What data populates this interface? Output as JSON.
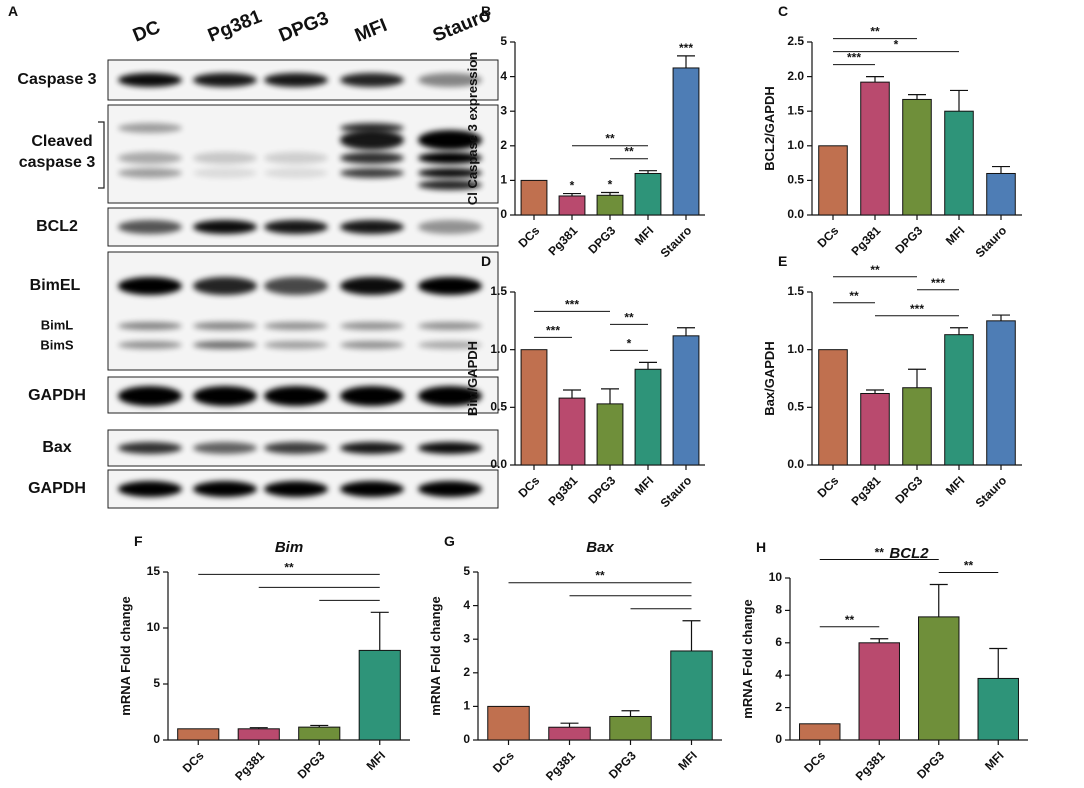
{
  "blot": {
    "panel": "A",
    "lanes": [
      "DC",
      "Pg381",
      "DPG3",
      "MFI",
      "Stauro"
    ],
    "rows": [
      "Caspase 3",
      "Cleaved",
      "caspase 3",
      "BCL2",
      "BimEL",
      "BimL",
      "BimS",
      "GAPDH",
      "Bax",
      "GAPDH"
    ]
  },
  "chart_data": [
    {
      "type": "bar",
      "panel": "B",
      "y_label": "Cl Caspase 3 expression",
      "categories": [
        "DCs",
        "Pg381",
        "DPG3",
        "MFI",
        "Stauro"
      ],
      "colors": [
        "#c0704f",
        "#b94a6e",
        "#6f8f3a",
        "#2e9479",
        "#4e7db5"
      ],
      "values": [
        1,
        0.55,
        0.57,
        1.2,
        4.25
      ],
      "errors": [
        0,
        0.07,
        0.08,
        0.08,
        0.35
      ],
      "ylim": [
        0,
        5
      ],
      "yticks": [
        0,
        1,
        2,
        3,
        4,
        5
      ],
      "stars": [
        {
          "index": 1,
          "label": "*"
        },
        {
          "index": 2,
          "label": "*"
        },
        {
          "index": 4,
          "label": "***"
        }
      ],
      "brackets": [
        {
          "from": 2,
          "to": 3,
          "label": "**"
        },
        {
          "from": 1,
          "to": 3,
          "label": "**"
        }
      ]
    },
    {
      "type": "bar",
      "panel": "C",
      "y_label": "BCL2/GAPDH",
      "categories": [
        "DCs",
        "Pg381",
        "DPG3",
        "MFI",
        "Stauro"
      ],
      "colors": [
        "#c0704f",
        "#b94a6e",
        "#6f8f3a",
        "#2e9479",
        "#4e7db5"
      ],
      "values": [
        1,
        1.92,
        1.67,
        1.5,
        0.6
      ],
      "errors": [
        0,
        0.08,
        0.07,
        0.3,
        0.1
      ],
      "ylim": [
        0,
        2.5
      ],
      "yticks": [
        {
          "value": 0,
          "label": "0.0"
        },
        0.5,
        {
          "value": 1,
          "label": "1.0"
        },
        1.5,
        {
          "value": 2,
          "label": "2.0"
        },
        2.5
      ],
      "brackets": [
        {
          "from": 0,
          "to": 1,
          "label": "***"
        },
        {
          "from": 0,
          "to": 3,
          "label": "*"
        },
        {
          "from": 0,
          "to": 2,
          "label": "**"
        }
      ]
    },
    {
      "type": "bar",
      "panel": "D",
      "y_label": "Bim/GAPDH",
      "categories": [
        "DCs",
        "Pg381",
        "DPG3",
        "MFI",
        "Stauro"
      ],
      "colors": [
        "#c0704f",
        "#b94a6e",
        "#6f8f3a",
        "#2e9479",
        "#4e7db5"
      ],
      "values": [
        1,
        0.58,
        0.53,
        0.83,
        1.12
      ],
      "errors": [
        0,
        0.07,
        0.13,
        0.06,
        0.07
      ],
      "ylim": [
        0,
        1.5
      ],
      "yticks": [
        {
          "value": 0,
          "label": "0.0"
        },
        0.5,
        {
          "value": 1,
          "label": "1.0"
        },
        1.5
      ],
      "brackets": [
        {
          "from": 2,
          "to": 3,
          "label": "*"
        },
        {
          "from": 0,
          "to": 1,
          "label": "***"
        },
        {
          "from": 2,
          "to": 3,
          "label": "**"
        },
        {
          "from": 0,
          "to": 2,
          "label": "***"
        }
      ]
    },
    {
      "type": "bar",
      "panel": "E",
      "y_label": "Bax/GAPDH",
      "categories": [
        "DCs",
        "Pg381",
        "DPG3",
        "MFI",
        "Stauro"
      ],
      "colors": [
        "#c0704f",
        "#b94a6e",
        "#6f8f3a",
        "#2e9479",
        "#4e7db5"
      ],
      "values": [
        1,
        0.62,
        0.67,
        1.13,
        1.25
      ],
      "errors": [
        0,
        0.03,
        0.16,
        0.06,
        0.05
      ],
      "ylim": [
        0,
        1.5
      ],
      "yticks": [
        {
          "value": 0,
          "label": "0.0"
        },
        0.5,
        {
          "value": 1,
          "label": "1.0"
        },
        1.5
      ],
      "brackets": [
        {
          "from": 1,
          "to": 3,
          "label": "***"
        },
        {
          "from": 0,
          "to": 1,
          "label": "**"
        },
        {
          "from": 2,
          "to": 3,
          "label": "***"
        },
        {
          "from": 0,
          "to": 2,
          "label": "**"
        }
      ]
    },
    {
      "type": "bar",
      "panel": "F",
      "title": "Bim",
      "y_label": "mRNA Fold change",
      "categories": [
        "DCs",
        "Pg381",
        "DPG3",
        "MFI"
      ],
      "colors": [
        "#c0704f",
        "#b94a6e",
        "#6f8f3a",
        "#2e9479"
      ],
      "values": [
        1,
        1,
        1.15,
        8
      ],
      "errors": [
        0,
        0.1,
        0.15,
        3.4
      ],
      "ylim": [
        0,
        15
      ],
      "yticks": [
        0,
        5,
        10,
        15
      ],
      "brackets": [
        {
          "from": 2,
          "to": 3
        },
        {
          "from": 1,
          "to": 3
        },
        {
          "from": 0,
          "to": 3,
          "label": "**"
        }
      ]
    },
    {
      "type": "bar",
      "panel": "G",
      "title": "Bax",
      "y_label": "mRNA Fold change",
      "categories": [
        "DCs",
        "Pg381",
        "DPG3",
        "MFI"
      ],
      "colors": [
        "#c0704f",
        "#b94a6e",
        "#6f8f3a",
        "#2e9479"
      ],
      "values": [
        1,
        0.38,
        0.7,
        2.65
      ],
      "errors": [
        0,
        0.12,
        0.17,
        0.9
      ],
      "ylim": [
        0,
        5
      ],
      "yticks": [
        0,
        1,
        2,
        3,
        4,
        5
      ],
      "brackets": [
        {
          "from": 2,
          "to": 3
        },
        {
          "from": 1,
          "to": 3
        },
        {
          "from": 0,
          "to": 3,
          "label": "**"
        }
      ]
    },
    {
      "type": "bar",
      "panel": "H",
      "title": "BCL2",
      "y_label": "mRNA Fold change",
      "categories": [
        "DCs",
        "Pg381",
        "DPG3",
        "MFI"
      ],
      "colors": [
        "#c0704f",
        "#b94a6e",
        "#6f8f3a",
        "#2e9479"
      ],
      "values": [
        1,
        6,
        7.6,
        3.8
      ],
      "errors": [
        0,
        0.25,
        2,
        1.85
      ],
      "ylim": [
        0,
        10
      ],
      "yticks": [
        0,
        2,
        4,
        6,
        8,
        10
      ],
      "brackets": [
        {
          "from": 0,
          "to": 1,
          "label": "**"
        },
        {
          "from": 2,
          "to": 3,
          "label": "**"
        },
        {
          "from": 0,
          "to": 2,
          "label": "**"
        }
      ]
    }
  ]
}
